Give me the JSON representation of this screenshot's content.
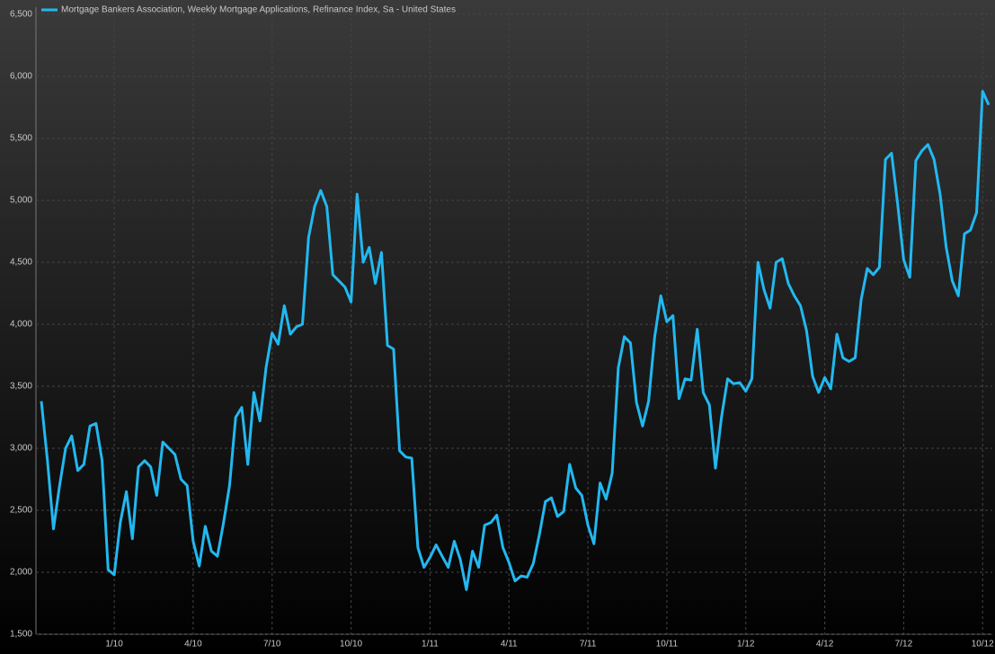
{
  "chart_data": {
    "type": "line",
    "categories": [
      null,
      null,
      null,
      null,
      null,
      null,
      null,
      null,
      null,
      null,
      null,
      null,
      "1/10",
      null,
      null,
      null,
      null,
      null,
      null,
      null,
      null,
      null,
      null,
      null,
      null,
      "4/10",
      null,
      null,
      null,
      null,
      null,
      null,
      null,
      null,
      null,
      null,
      null,
      null,
      "7/10",
      null,
      null,
      null,
      null,
      null,
      null,
      null,
      null,
      null,
      null,
      null,
      null,
      "10/10",
      null,
      null,
      null,
      null,
      null,
      null,
      null,
      null,
      null,
      null,
      null,
      null,
      "1/11",
      null,
      null,
      null,
      null,
      null,
      null,
      null,
      null,
      null,
      null,
      null,
      null,
      "4/11",
      null,
      null,
      null,
      null,
      null,
      null,
      null,
      null,
      null,
      null,
      null,
      null,
      "7/11",
      null,
      null,
      null,
      null,
      null,
      null,
      null,
      null,
      null,
      null,
      null,
      null,
      "10/11",
      null,
      null,
      null,
      null,
      null,
      null,
      null,
      null,
      null,
      null,
      null,
      null,
      "1/12",
      null,
      null,
      null,
      null,
      null,
      null,
      null,
      null,
      null,
      null,
      null,
      null,
      "4/12",
      null,
      null,
      null,
      null,
      null,
      null,
      null,
      null,
      null,
      null,
      null,
      null,
      "7/12",
      null,
      null,
      null,
      null,
      null,
      null,
      null,
      null,
      null,
      null,
      null,
      null,
      "10/12",
      null
    ],
    "series": [
      {
        "name": "Mortgage Bankers Association, Weekly Mortgage Applications, Refinance Index, Sa - United States",
        "color": "#22b8f0",
        "values": [
          3380,
          2900,
          2350,
          2700,
          3000,
          3100,
          2820,
          2870,
          3180,
          3200,
          2900,
          2020,
          1980,
          2400,
          2650,
          2270,
          2850,
          2900,
          2850,
          2620,
          3050,
          3000,
          2950,
          2750,
          2700,
          2250,
          2050,
          2370,
          2170,
          2130,
          2400,
          2700,
          3250,
          3330,
          2870,
          3450,
          3220,
          3650,
          3930,
          3840,
          4150,
          3920,
          3980,
          4000,
          4700,
          4950,
          5080,
          4950,
          4400,
          4350,
          4300,
          4180,
          5050,
          4500,
          4620,
          4330,
          4580,
          3830,
          3800,
          2980,
          2930,
          2920,
          2200,
          2040,
          2120,
          2220,
          2130,
          2040,
          2250,
          2100,
          1860,
          2170,
          2040,
          2380,
          2400,
          2460,
          2200,
          2080,
          1930,
          1970,
          1960,
          2070,
          2300,
          2570,
          2600,
          2450,
          2490,
          2870,
          2680,
          2620,
          2380,
          2230,
          2720,
          2590,
          2800,
          3650,
          3900,
          3850,
          3370,
          3180,
          3380,
          3900,
          4230,
          4020,
          4070,
          3400,
          3560,
          3550,
          3960,
          3450,
          3350,
          2840,
          3250,
          3560,
          3520,
          3530,
          3460,
          3560,
          4500,
          4280,
          4130,
          4500,
          4530,
          4330,
          4230,
          4150,
          3950,
          3580,
          3450,
          3570,
          3480,
          3920,
          3730,
          3700,
          3730,
          4200,
          4450,
          4400,
          4460,
          5330,
          5380,
          4970,
          4520,
          4380,
          5320,
          5400,
          5450,
          5330,
          5050,
          4620,
          4350,
          4230,
          4730,
          4760,
          4900,
          5880,
          5770
        ]
      }
    ],
    "ylim": [
      1500,
      6500
    ],
    "yticks": [
      {
        "value": 1500,
        "label": "1,500"
      },
      {
        "value": 2000,
        "label": "2,000"
      },
      {
        "value": 2500,
        "label": "2,500"
      },
      {
        "value": 3000,
        "label": "3,000"
      },
      {
        "value": 3500,
        "label": "3,500"
      },
      {
        "value": 4000,
        "label": "4,000"
      },
      {
        "value": 4500,
        "label": "4,500"
      },
      {
        "value": 5000,
        "label": "5,000"
      },
      {
        "value": 5500,
        "label": "5,500"
      },
      {
        "value": 6000,
        "label": "6,000"
      },
      {
        "value": 6500,
        "label": "6,500"
      }
    ],
    "grid": true
  }
}
